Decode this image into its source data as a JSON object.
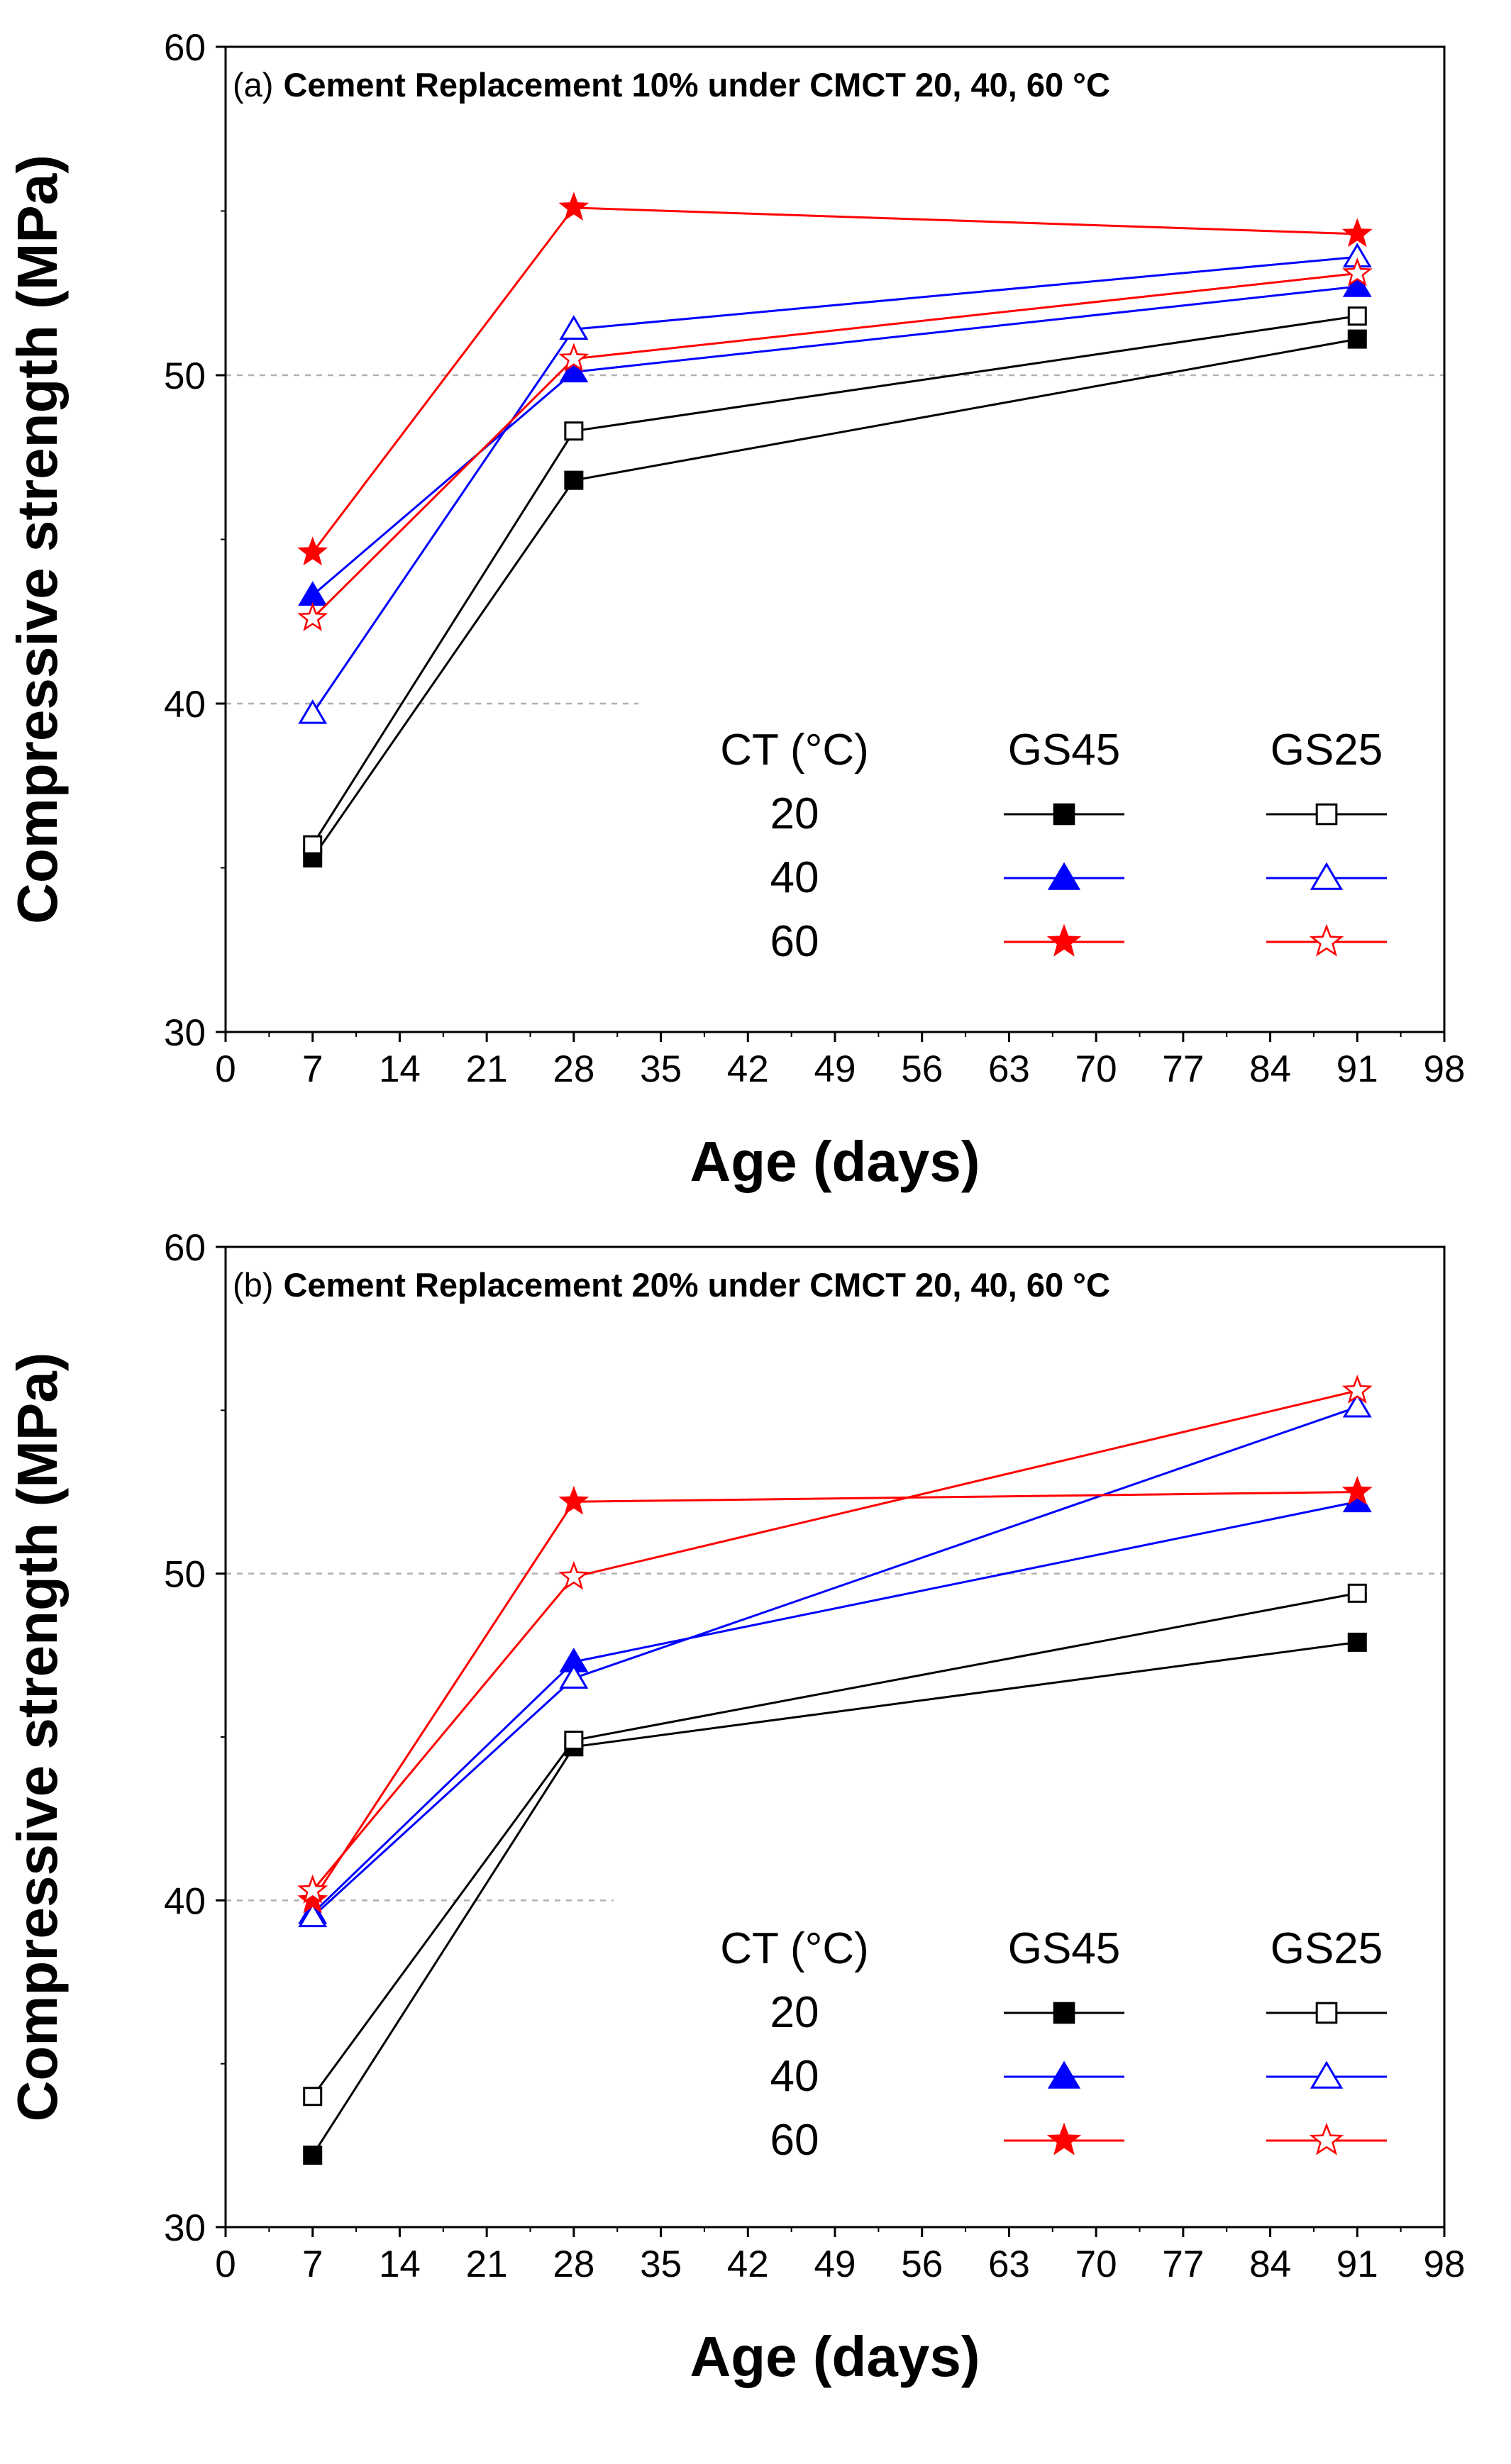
{
  "figure": {
    "x_ticks": [
      "0",
      "7",
      "14",
      "21",
      "28",
      "35",
      "42",
      "49",
      "56",
      "63",
      "70",
      "77",
      "84",
      "91",
      "98"
    ],
    "y_ticks": [
      "30",
      "40",
      "50",
      "60"
    ],
    "legend": {
      "header_ct": "CT (°C)",
      "header_gs45": "GS45",
      "header_gs25": "GS25",
      "rows": [
        "20",
        "40",
        "60"
      ]
    }
  },
  "chart_data": [
    {
      "type": "line",
      "panel_label": "(a)",
      "title": "Cement Replacement 10% under CMCT 20, 40, 60 °C",
      "xlabel": "Age (days)",
      "ylabel": "Compressive strength (MPa)",
      "xlim": [
        0,
        98
      ],
      "ylim": [
        30,
        60
      ],
      "x": [
        7,
        28,
        91
      ],
      "series": [
        {
          "name": "GS45 20",
          "ct": "20",
          "group": "GS45",
          "color": "#000000",
          "marker": "square",
          "filled": true,
          "values": [
            35.3,
            46.8,
            51.1
          ]
        },
        {
          "name": "GS25 20",
          "ct": "20",
          "group": "GS25",
          "color": "#000000",
          "marker": "square",
          "filled": false,
          "values": [
            35.7,
            48.3,
            51.8
          ]
        },
        {
          "name": "GS45 40",
          "ct": "40",
          "group": "GS45",
          "color": "#0000ff",
          "marker": "triangle",
          "filled": true,
          "values": [
            43.3,
            50.1,
            52.7
          ]
        },
        {
          "name": "GS25 40",
          "ct": "40",
          "group": "GS25",
          "color": "#0000ff",
          "marker": "triangle",
          "filled": false,
          "values": [
            39.7,
            51.4,
            53.6
          ]
        },
        {
          "name": "GS45 60",
          "ct": "60",
          "group": "GS45",
          "color": "#ff0000",
          "marker": "star",
          "filled": true,
          "values": [
            44.6,
            55.1,
            54.3
          ]
        },
        {
          "name": "GS25 60",
          "ct": "60",
          "group": "GS25",
          "color": "#ff0000",
          "marker": "star",
          "filled": false,
          "values": [
            42.6,
            50.5,
            53.1
          ]
        }
      ]
    },
    {
      "type": "line",
      "panel_label": "(b)",
      "title": "Cement Replacement 20% under CMCT 20, 40, 60 °C",
      "xlabel": "Age (days)",
      "ylabel": "Compressive strength (MPa)",
      "xlim": [
        0,
        98
      ],
      "ylim": [
        30,
        60
      ],
      "x": [
        7,
        28,
        91
      ],
      "series": [
        {
          "name": "GS45 20",
          "ct": "20",
          "group": "GS45",
          "color": "#000000",
          "marker": "square",
          "filled": true,
          "values": [
            32.2,
            44.7,
            47.9
          ]
        },
        {
          "name": "GS25 20",
          "ct": "20",
          "group": "GS25",
          "color": "#000000",
          "marker": "square",
          "filled": false,
          "values": [
            34.0,
            44.9,
            49.4
          ]
        },
        {
          "name": "GS45 40",
          "ct": "40",
          "group": "GS45",
          "color": "#0000ff",
          "marker": "triangle",
          "filled": true,
          "values": [
            39.6,
            47.3,
            52.2
          ]
        },
        {
          "name": "GS25 40",
          "ct": "40",
          "group": "GS25",
          "color": "#0000ff",
          "marker": "triangle",
          "filled": false,
          "values": [
            39.5,
            46.8,
            55.1
          ]
        },
        {
          "name": "GS45 60",
          "ct": "60",
          "group": "GS45",
          "color": "#ff0000",
          "marker": "star",
          "filled": true,
          "values": [
            40.0,
            52.2,
            52.5
          ]
        },
        {
          "name": "GS25 60",
          "ct": "60",
          "group": "GS25",
          "color": "#ff0000",
          "marker": "star",
          "filled": false,
          "values": [
            40.3,
            49.9,
            55.6
          ]
        }
      ]
    }
  ]
}
